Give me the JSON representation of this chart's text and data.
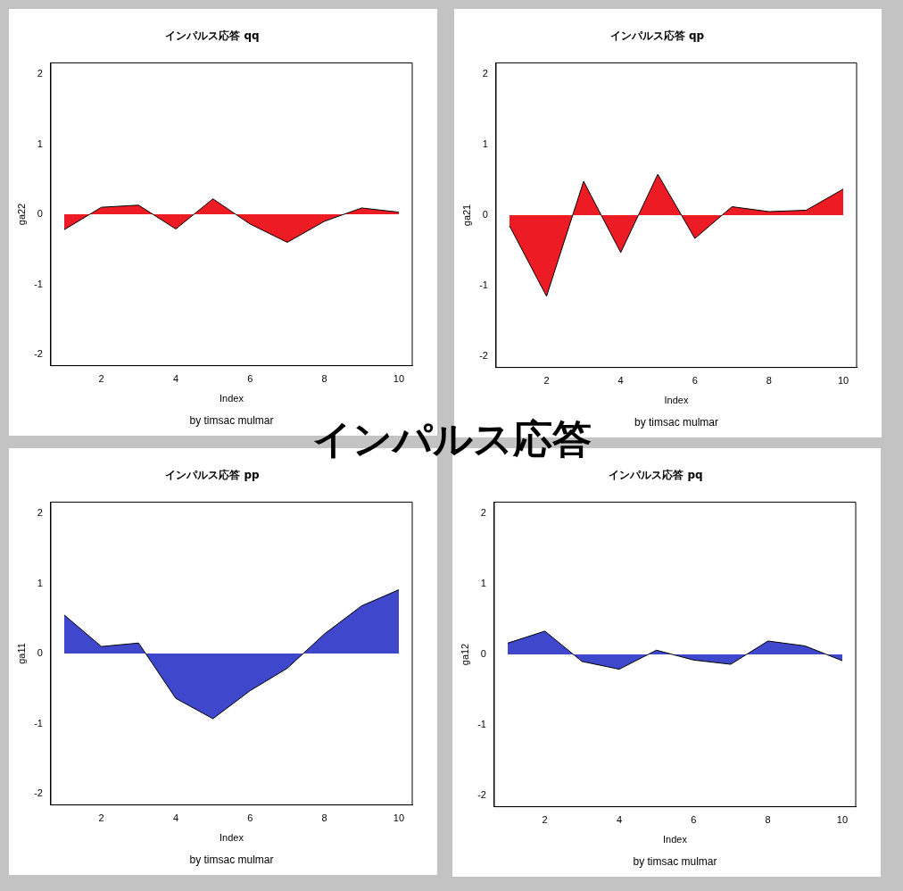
{
  "chart_data": [
    {
      "type": "area",
      "title": "インパルス応答 qq",
      "xlabel": "Index",
      "ylabel": "ga22",
      "annotations": [
        "by timsac mulmar"
      ],
      "x": [
        1,
        2,
        3,
        4,
        5,
        6,
        7,
        8,
        9,
        10
      ],
      "xlim": [
        0.64,
        10.36
      ],
      "xticks": [
        2,
        4,
        6,
        8,
        10
      ],
      "ylim": [
        -2.16,
        2.16
      ],
      "yticks": [
        -2,
        -1,
        0,
        1,
        2
      ],
      "series": [
        {
          "color": "#ed1c24",
          "values": [
            -0.22,
            0.1,
            0.13,
            -0.21,
            0.22,
            -0.14,
            -0.4,
            -0.1,
            0.09,
            0.03
          ]
        }
      ]
    },
    {
      "type": "area",
      "title": "インパルス応答 qp",
      "xlabel": "Index",
      "ylabel": "ga21",
      "annotations": [
        "by timsac mulmar"
      ],
      "x": [
        1,
        2,
        3,
        4,
        5,
        6,
        7,
        8,
        9,
        10
      ],
      "xlim": [
        0.64,
        10.36
      ],
      "xticks": [
        2,
        4,
        6,
        8,
        10
      ],
      "ylim": [
        -2.16,
        2.16
      ],
      "yticks": [
        -2,
        -1,
        0,
        1,
        2
      ],
      "series": [
        {
          "color": "#ed1c24",
          "values": [
            -0.15,
            -1.15,
            0.48,
            -0.53,
            0.58,
            -0.33,
            0.12,
            0.05,
            0.07,
            0.37
          ]
        }
      ]
    },
    {
      "type": "other",
      "title": "インパルス応答"
    },
    {
      "type": "area",
      "title": "インパルス応答 pp",
      "xlabel": "Index",
      "ylabel": "ga11",
      "annotations": [
        "by timsac mulmar"
      ],
      "x": [
        1,
        2,
        3,
        4,
        5,
        6,
        7,
        8,
        9,
        10
      ],
      "xlim": [
        0.64,
        10.36
      ],
      "xticks": [
        2,
        4,
        6,
        8,
        10
      ],
      "ylim": [
        -2.16,
        2.16
      ],
      "yticks": [
        -2,
        -1,
        0,
        1,
        2
      ],
      "series": [
        {
          "color": "#3f48cc",
          "values": [
            0.55,
            0.1,
            0.15,
            -0.64,
            -0.93,
            -0.53,
            -0.21,
            0.28,
            0.68,
            0.91
          ]
        }
      ]
    },
    {
      "type": "area",
      "title": "インパルス応答 pq",
      "xlabel": "Index",
      "ylabel": "ga12",
      "annotations": [
        "by timsac mulmar"
      ],
      "x": [
        1,
        2,
        3,
        4,
        5,
        6,
        7,
        8,
        9,
        10
      ],
      "xlim": [
        0.64,
        10.36
      ],
      "xticks": [
        2,
        4,
        6,
        8,
        10
      ],
      "ylim": [
        -2.16,
        2.16
      ],
      "yticks": [
        -2,
        -1,
        0,
        1,
        2
      ],
      "series": [
        {
          "color": "#3f48cc",
          "values": [
            0.16,
            0.33,
            -0.1,
            -0.21,
            0.06,
            -0.08,
            -0.14,
            0.19,
            0.12,
            -0.09
          ]
        }
      ]
    }
  ]
}
